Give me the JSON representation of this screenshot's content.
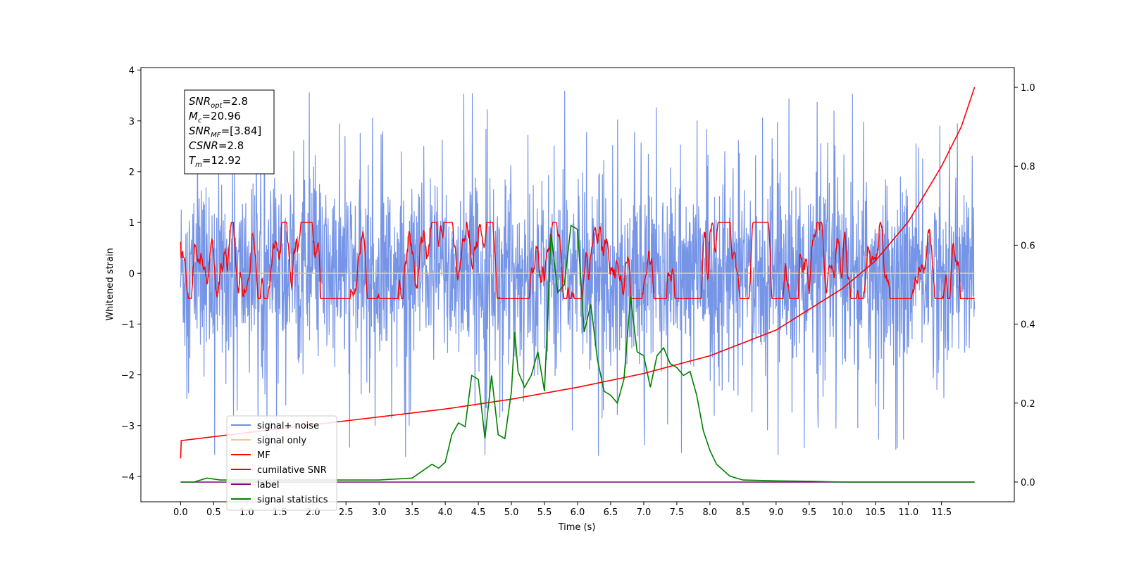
{
  "chart_data": {
    "type": "line",
    "xlabel": "Time (s)",
    "ylabel": "Whitened strain",
    "xlim": [
      -0.6,
      12.6
    ],
    "ylim_left": [
      -4.5,
      4.05
    ],
    "ylim_right": [
      -0.05,
      1.05
    ],
    "x_ticks": [
      0.0,
      0.5,
      1.0,
      1.5,
      2.0,
      2.5,
      3.0,
      3.5,
      4.0,
      4.5,
      5.0,
      5.5,
      6.0,
      6.5,
      7.0,
      7.5,
      8.0,
      8.5,
      9.0,
      9.5,
      10.0,
      10.5,
      11.0,
      11.5
    ],
    "x_tick_labels": [
      "0.0",
      "0.5",
      "1.0",
      "1.5",
      "2.0",
      "2.5",
      "3.0",
      "3.5",
      "4.0",
      "4.5",
      "5.0",
      "5.5",
      "6.0",
      "6.5",
      "7.0",
      "7.5",
      "8.0",
      "8.5",
      "9.0",
      "9.5",
      "10.0",
      "10.5",
      "11.0",
      "11.5"
    ],
    "y_ticks_left": [
      -4,
      -3,
      -2,
      -1,
      0,
      1,
      2,
      3,
      4
    ],
    "y_tick_labels_left": [
      "−4",
      "−3",
      "−2",
      "−1",
      "0",
      "1",
      "2",
      "3",
      "4"
    ],
    "y_ticks_right": [
      0.0,
      0.2,
      0.4,
      0.6,
      0.8,
      1.0
    ],
    "y_tick_labels_right": [
      "0.0",
      "0.2",
      "0.4",
      "0.6",
      "0.8",
      "1.0"
    ],
    "annotation": {
      "lines": [
        {
          "main": "SNR",
          "sub": "opt",
          "rest": "=2.8"
        },
        {
          "main": "M",
          "sub": "c",
          "rest": "=20.96"
        },
        {
          "main": "SNR",
          "sub": "MF",
          "rest": "=[3.84]"
        },
        {
          "main": "CSNR",
          "sub": "",
          "rest": "=2.8"
        },
        {
          "main": "T",
          "sub": "m",
          "rest": "=12.92"
        }
      ]
    },
    "legend_position": "lower-left",
    "series": [
      {
        "name": "signal+ noise",
        "color": "#6f8fe6",
        "axis": "left",
        "description": "noise band approx. -2.3 to +2.3 with spikes to ±3.6",
        "x_range": [
          0,
          12.0
        ]
      },
      {
        "name": "signal only",
        "color": "#f5c77a",
        "axis": "left",
        "y_approx": 0.0,
        "x_range": [
          0,
          12.0
        ]
      },
      {
        "name": "MF",
        "color": "#ff0000",
        "axis": "left",
        "description": "fluctuates between about -0.5 and +1.0",
        "x_range": [
          0,
          12.0
        ]
      },
      {
        "name": "cumilative SNR",
        "color": "#ff0000",
        "axis": "right",
        "x": [
          0.0,
          0.01,
          1.0,
          2.0,
          3.0,
          4.0,
          5.0,
          6.0,
          7.0,
          8.0,
          9.0,
          10.0,
          10.5,
          11.0,
          11.5,
          11.8,
          12.0
        ],
        "values": [
          0.06,
          0.105,
          0.125,
          0.145,
          0.165,
          0.185,
          0.21,
          0.24,
          0.275,
          0.32,
          0.385,
          0.49,
          0.56,
          0.66,
          0.8,
          0.9,
          1.0
        ]
      },
      {
        "name": "label",
        "color": "#800080",
        "axis": "right",
        "x": [
          0.0,
          12.0
        ],
        "values": [
          0.0,
          0.0
        ]
      },
      {
        "name": "signal statistics",
        "color": "#008000",
        "axis": "right",
        "x": [
          0.0,
          0.2,
          0.4,
          0.6,
          1.0,
          1.5,
          2.0,
          2.5,
          3.0,
          3.5,
          3.8,
          3.9,
          4.0,
          4.1,
          4.2,
          4.3,
          4.4,
          4.5,
          4.6,
          4.7,
          4.8,
          4.9,
          5.0,
          5.05,
          5.1,
          5.2,
          5.3,
          5.4,
          5.5,
          5.6,
          5.7,
          5.8,
          5.9,
          6.0,
          6.1,
          6.2,
          6.3,
          6.4,
          6.5,
          6.6,
          6.7,
          6.8,
          6.9,
          7.0,
          7.1,
          7.2,
          7.3,
          7.4,
          7.5,
          7.6,
          7.7,
          7.8,
          7.9,
          8.0,
          8.1,
          8.3,
          8.5,
          9.0,
          9.5,
          10.0,
          11.0,
          12.0
        ],
        "values": [
          0.0,
          0.0,
          0.01,
          0.005,
          0.005,
          0.005,
          0.005,
          0.005,
          0.005,
          0.01,
          0.045,
          0.035,
          0.05,
          0.12,
          0.15,
          0.14,
          0.27,
          0.26,
          0.11,
          0.27,
          0.12,
          0.11,
          0.23,
          0.38,
          0.28,
          0.24,
          0.27,
          0.33,
          0.23,
          0.63,
          0.48,
          0.5,
          0.65,
          0.64,
          0.38,
          0.45,
          0.31,
          0.23,
          0.22,
          0.2,
          0.26,
          0.47,
          0.33,
          0.32,
          0.24,
          0.32,
          0.34,
          0.3,
          0.29,
          0.27,
          0.28,
          0.22,
          0.13,
          0.08,
          0.045,
          0.015,
          0.005,
          0.003,
          0.002,
          0.0,
          0.0,
          0.0
        ]
      }
    ]
  }
}
